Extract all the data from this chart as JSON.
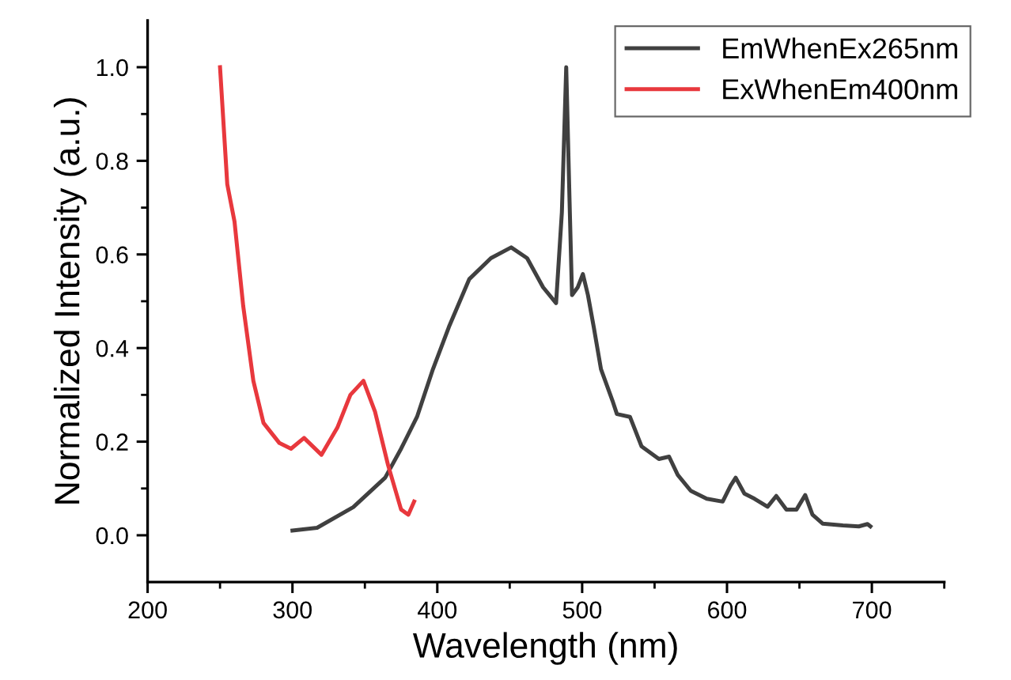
{
  "chart_data": {
    "type": "line",
    "xlabel": "Wavelength (nm)",
    "ylabel": "Normalized Intensity (a.u.)",
    "xlim": [
      200,
      750
    ],
    "ylim": [
      -0.1,
      1.1
    ],
    "xticks": [
      200,
      {
        "value": 250,
        "label": null
      },
      300,
      {
        "value": 350,
        "label": null
      },
      400,
      {
        "value": 450,
        "label": null
      },
      500,
      {
        "value": 550,
        "label": null
      },
      600,
      {
        "value": 650,
        "label": null
      },
      700,
      {
        "value": 750,
        "label": null
      }
    ],
    "yticks": [
      {
        "value": 0,
        "label": "0.0"
      },
      {
        "value": 0.1,
        "label": null
      },
      {
        "value": 0.2,
        "label": "0.2"
      },
      {
        "value": 0.3,
        "label": null
      },
      {
        "value": 0.4,
        "label": "0.4"
      },
      {
        "value": 0.5,
        "label": null
      },
      {
        "value": 0.6,
        "label": "0.6"
      },
      {
        "value": 0.7,
        "label": null
      },
      {
        "value": 0.8,
        "label": "0.8"
      },
      {
        "value": 0.9,
        "label": null
      },
      {
        "value": 1.0,
        "label": "1.0"
      }
    ],
    "legend": "top right",
    "grid": false,
    "marker": "none",
    "line_style": "solid",
    "series": [
      {
        "name": "EmWhenEx265nm",
        "color": "#404040",
        "x": [
          300,
          317,
          342,
          364,
          375,
          386,
          397,
          408,
          422,
          437,
          451,
          462,
          473,
          482,
          486,
          489,
          491.5,
          493,
          497,
          500.5,
          504,
          508,
          513,
          521,
          524,
          533,
          541,
          553,
          560,
          566,
          575,
          586,
          597,
          602.5,
          606,
          612,
          619,
          628,
          634,
          641,
          648,
          654,
          659,
          666,
          680,
          691,
          697,
          699
        ],
        "values": [
          0.01,
          0.016,
          0.06,
          0.123,
          0.185,
          0.253,
          0.355,
          0.445,
          0.547,
          0.592,
          0.615,
          0.592,
          0.53,
          0.496,
          0.69,
          1.0,
          0.69,
          0.513,
          0.53,
          0.558,
          0.513,
          0.445,
          0.355,
          0.287,
          0.259,
          0.253,
          0.19,
          0.163,
          0.168,
          0.129,
          0.095,
          0.078,
          0.072,
          0.106,
          0.123,
          0.089,
          0.078,
          0.061,
          0.084,
          0.055,
          0.055,
          0.086,
          0.044,
          0.025,
          0.021,
          0.019,
          0.024,
          0.019
        ]
      },
      {
        "name": "ExWhenEm400nm",
        "color": "#e8383d",
        "x": [
          250,
          255,
          260,
          266,
          273,
          280,
          291,
          299,
          308,
          320,
          331,
          340,
          349,
          357,
          366,
          375,
          380,
          384
        ],
        "values": [
          1.0,
          0.75,
          0.67,
          0.49,
          0.33,
          0.24,
          0.197,
          0.185,
          0.208,
          0.172,
          0.23,
          0.3,
          0.33,
          0.264,
          0.15,
          0.055,
          0.044,
          0.072
        ]
      }
    ]
  }
}
